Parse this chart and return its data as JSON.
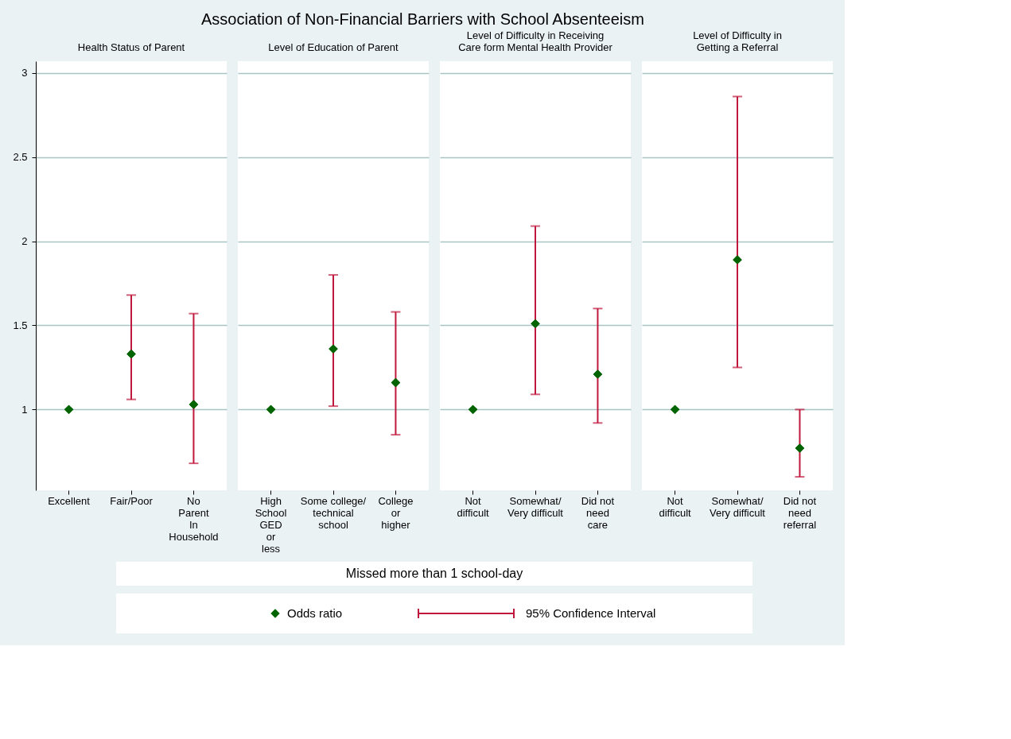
{
  "chart_data": [
    {
      "type": "other",
      "title": "Association of Non-Financial Barriers with School Absenteeism",
      "annotations": [
        "Missed more than 1 school-day"
      ]
    },
    {
      "type": "scatter",
      "subtitle": "Health Status of Parent",
      "legend": "bottom",
      "marker": "diamond",
      "grid": "y",
      "annotations": [
        "95% Confidence Interval"
      ],
      "categories": [
        "Excellent",
        "Fair/Poor",
        "No\nParent\nIn\nHousehold"
      ],
      "series": [
        {
          "name": "Odds ratio",
          "color": "#006400",
          "values": [
            1,
            1.33,
            1.03
          ],
          "errors": [
            null,
            [
              1.06,
              1.68
            ],
            [
              0.68,
              1.57
            ]
          ]
        }
      ],
      "ylim": [
        0.52,
        3.07
      ],
      "yticks": [
        1,
        1.5,
        2,
        2.5,
        3
      ]
    },
    {
      "type": "scatter",
      "subtitle": "Level of Education of Parent",
      "marker": "diamond",
      "grid": "y",
      "tick_labels": "x",
      "categories": [
        "High\nSchool\nGED\nor\nless",
        "Some college/\ntechnical\nschool",
        "College\nor\nhigher"
      ],
      "series": [
        {
          "color": "#006400",
          "values": [
            1,
            1.36,
            1.16
          ],
          "errors": [
            null,
            [
              1.02,
              1.8
            ],
            [
              0.85,
              1.58
            ]
          ]
        }
      ],
      "ylim": [
        0.52,
        3.07
      ],
      "yticks": [
        1,
        1.5,
        2,
        2.5,
        3
      ]
    },
    {
      "type": "scatter",
      "subtitle": "Level of Difficulty in Receiving\nCare form Mental Health Provider",
      "marker": "diamond",
      "grid": "y",
      "tick_labels": "x",
      "categories": [
        "Not\ndifficult",
        "Somewhat/\nVery difficult",
        "Did not\nneed\ncare"
      ],
      "series": [
        {
          "color": "#006400",
          "values": [
            1,
            1.51,
            1.21
          ],
          "errors": [
            null,
            [
              1.09,
              2.09
            ],
            [
              0.92,
              1.6
            ]
          ]
        }
      ],
      "ylim": [
        0.52,
        3.07
      ],
      "yticks": [
        1,
        1.5,
        2,
        2.5,
        3
      ]
    },
    {
      "type": "scatter",
      "subtitle": "Level of Difficulty in\nGetting a Referral",
      "marker": "diamond",
      "grid": "y",
      "tick_labels": "x",
      "categories": [
        "Not\ndifficult",
        "Somewhat/\nVery difficult",
        "Did not\nneed\nreferral"
      ],
      "series": [
        {
          "color": "#006400",
          "values": [
            1,
            1.89,
            0.77
          ],
          "errors": [
            null,
            [
              1.25,
              2.86
            ],
            [
              0.6,
              1.0
            ]
          ]
        }
      ],
      "ylim": [
        0.52,
        3.07
      ],
      "yticks": [
        1,
        1.5,
        2,
        2.5,
        3
      ]
    }
  ]
}
